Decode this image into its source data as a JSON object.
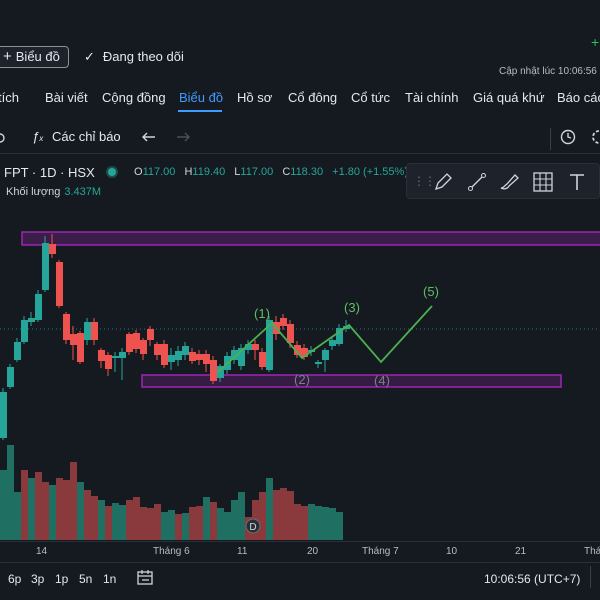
{
  "header": {
    "chart_button": "Biểu đồ",
    "following": "Đang theo dõi",
    "updated": "Cập nhật lúc  10:06:56"
  },
  "tabs": [
    "tích",
    "Bài viết",
    "Cộng đồng",
    "Biểu đồ",
    "Hồ sơ",
    "Cổ đông",
    "Cổ tức",
    "Tài chính",
    "Giá quá khứ",
    "Báo cáo"
  ],
  "active_tab": "Biểu đồ",
  "toolbar": {
    "indicators": "Các chỉ báo"
  },
  "legend": {
    "symbol": "FPT · 1D · HSX",
    "open_label": "O",
    "open": "117.00",
    "high_label": "H",
    "high": "119.40",
    "low_label": "L",
    "low": "117.00",
    "close_label": "C",
    "close": "118.30",
    "change": "+1.80 (+1.55%)",
    "volume_label": "Khối lượng",
    "volume": "3.437M"
  },
  "drawing_tools": [
    "pen-icon",
    "line-icon",
    "brush-icon",
    "grid-icon",
    "text-icon"
  ],
  "waves": [
    "(1)",
    "(2)",
    "(3)",
    "(4)",
    "(5)"
  ],
  "x_axis": [
    "14",
    "Tháng 6",
    "11",
    "20",
    "Tháng 7",
    "10",
    "21",
    "Tháng"
  ],
  "periods": [
    "6p",
    "3p",
    "1p",
    "5n",
    "1n"
  ],
  "clock": "10:06:56 (UTC+7)",
  "dividend_marker": "D",
  "colors": {
    "up": "#26a69a",
    "down": "#ef5350",
    "wave": "#4caf50",
    "zone": "#9c27b0",
    "accent": "#3f9cff"
  }
}
